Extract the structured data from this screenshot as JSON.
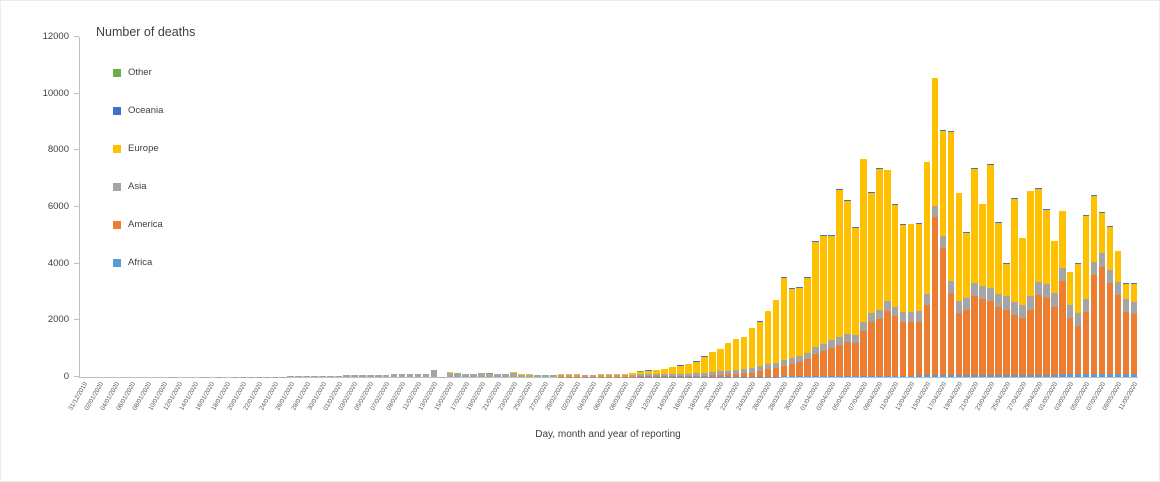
{
  "chart_data": {
    "type": "bar",
    "stacked": true,
    "legend_title": "Number of deaths",
    "xlabel": "Day, month and year of reporting",
    "ylabel": "",
    "ylim": [
      0,
      12000
    ],
    "yticks": [
      0,
      2000,
      4000,
      6000,
      8000,
      10000,
      12000
    ],
    "x_label_every": 2,
    "legend_position": "top-left-inside",
    "grid": false,
    "axis_color": "#bfbfbf",
    "text_color": "#404040",
    "legend_order": [
      "Other",
      "Oceania",
      "Europe",
      "Asia",
      "America",
      "Africa"
    ],
    "stack_order": [
      "Africa",
      "America",
      "Asia",
      "Europe",
      "Oceania",
      "Other"
    ],
    "dates": [
      "31/12/2019",
      "01/01/2020",
      "02/01/2020",
      "03/01/2020",
      "04/01/2020",
      "05/01/2020",
      "06/01/2020",
      "07/01/2020",
      "08/01/2020",
      "09/01/2020",
      "10/01/2020",
      "11/01/2020",
      "12/01/2020",
      "13/01/2020",
      "14/01/2020",
      "15/01/2020",
      "16/01/2020",
      "17/01/2020",
      "18/01/2020",
      "19/01/2020",
      "20/01/2020",
      "21/01/2020",
      "22/01/2020",
      "23/01/2020",
      "24/01/2020",
      "25/01/2020",
      "26/01/2020",
      "27/01/2020",
      "28/01/2020",
      "29/01/2020",
      "30/01/2020",
      "31/01/2020",
      "01/02/2020",
      "02/02/2020",
      "03/02/2020",
      "04/02/2020",
      "05/02/2020",
      "06/02/2020",
      "07/02/2020",
      "08/02/2020",
      "09/02/2020",
      "10/02/2020",
      "11/02/2020",
      "12/02/2020",
      "13/02/2020",
      "14/02/2020",
      "15/02/2020",
      "16/02/2020",
      "17/02/2020",
      "18/02/2020",
      "19/02/2020",
      "20/02/2020",
      "21/02/2020",
      "22/02/2020",
      "23/02/2020",
      "24/02/2020",
      "25/02/2020",
      "26/02/2020",
      "27/02/2020",
      "28/02/2020",
      "29/02/2020",
      "01/03/2020",
      "02/03/2020",
      "03/03/2020",
      "04/03/2020",
      "05/03/2020",
      "06/03/2020",
      "07/03/2020",
      "08/03/2020",
      "09/03/2020",
      "10/03/2020",
      "11/03/2020",
      "12/03/2020",
      "13/03/2020",
      "14/03/2020",
      "15/03/2020",
      "16/03/2020",
      "17/03/2020",
      "18/03/2020",
      "19/03/2020",
      "20/03/2020",
      "21/03/2020",
      "22/03/2020",
      "23/03/2020",
      "24/03/2020",
      "25/03/2020",
      "26/03/2020",
      "27/03/2020",
      "28/03/2020",
      "29/03/2020",
      "30/03/2020",
      "31/03/2020",
      "01/04/2020",
      "02/04/2020",
      "03/04/2020",
      "04/04/2020",
      "05/04/2020",
      "06/04/2020",
      "07/04/2020",
      "08/04/2020",
      "09/04/2020",
      "10/04/2020",
      "11/04/2020",
      "12/04/2020",
      "13/04/2020",
      "14/04/2020",
      "15/04/2020",
      "16/04/2020",
      "17/04/2020",
      "18/04/2020",
      "19/04/2020",
      "20/04/2020",
      "21/04/2020",
      "22/04/2020",
      "23/04/2020",
      "24/04/2020",
      "25/04/2020",
      "26/04/2020",
      "27/04/2020",
      "28/04/2020",
      "29/04/2020",
      "30/04/2020",
      "01/05/2020",
      "02/05/2020",
      "03/05/2020",
      "04/05/2020",
      "05/05/2020",
      "06/05/2020",
      "07/05/2020",
      "08/05/2020",
      "09/05/2020",
      "10/05/2020",
      "11/05/2020"
    ],
    "series": [
      {
        "name": "Africa",
        "color": "#5B9BD5",
        "values": [
          0,
          0,
          0,
          0,
          0,
          0,
          0,
          0,
          0,
          0,
          0,
          0,
          0,
          0,
          0,
          0,
          0,
          0,
          0,
          0,
          0,
          0,
          0,
          0,
          0,
          0,
          0,
          0,
          0,
          0,
          0,
          0,
          0,
          0,
          0,
          0,
          0,
          0,
          0,
          0,
          0,
          0,
          0,
          0,
          0,
          0,
          0,
          0,
          0,
          0,
          0,
          0,
          0,
          0,
          0,
          0,
          0,
          0,
          0,
          0,
          0,
          0,
          0,
          0,
          0,
          0,
          0,
          0,
          0,
          0,
          1,
          1,
          1,
          2,
          2,
          2,
          3,
          3,
          4,
          5,
          6,
          8,
          8,
          10,
          12,
          14,
          16,
          18,
          20,
          22,
          24,
          26,
          28,
          30,
          32,
          34,
          36,
          38,
          40,
          42,
          44,
          46,
          48,
          50,
          52,
          54,
          56,
          58,
          60,
          62,
          64,
          66,
          68,
          70,
          72,
          74,
          76,
          78,
          80,
          82,
          84,
          86,
          88,
          90,
          92,
          94,
          96,
          98,
          100,
          102,
          104,
          106,
          108
        ]
      },
      {
        "name": "America",
        "color": "#ED7D31",
        "values": [
          0,
          0,
          0,
          0,
          0,
          0,
          0,
          0,
          0,
          0,
          0,
          0,
          0,
          0,
          0,
          0,
          0,
          0,
          0,
          0,
          0,
          0,
          0,
          0,
          0,
          0,
          0,
          0,
          0,
          0,
          0,
          0,
          0,
          0,
          0,
          0,
          0,
          0,
          0,
          0,
          0,
          0,
          0,
          0,
          0,
          0,
          0,
          0,
          0,
          0,
          0,
          0,
          0,
          0,
          0,
          0,
          0,
          0,
          0,
          0,
          1,
          1,
          1,
          4,
          3,
          2,
          3,
          4,
          3,
          4,
          5,
          8,
          6,
          10,
          12,
          15,
          20,
          25,
          35,
          45,
          60,
          80,
          100,
          120,
          140,
          200,
          250,
          300,
          380,
          430,
          500,
          600,
          800,
          900,
          1000,
          1100,
          1200,
          1150,
          1600,
          1900,
          2000,
          2300,
          2100,
          1900,
          1900,
          1900,
          2500,
          5600,
          4500,
          2900,
          2200,
          2300,
          2800,
          2700,
          2600,
          2400,
          2300,
          2100,
          2000,
          2300,
          2800,
          2700,
          2400,
          3300,
          2000,
          1700,
          2200,
          3500,
          3800,
          3200,
          2800,
          2200,
          2100
        ]
      },
      {
        "name": "Asia",
        "color": "#A5A5A5",
        "values": [
          0,
          0,
          0,
          0,
          0,
          0,
          0,
          0,
          0,
          0,
          0,
          1,
          0,
          0,
          0,
          1,
          0,
          1,
          0,
          1,
          1,
          4,
          3,
          8,
          9,
          15,
          24,
          26,
          26,
          38,
          43,
          46,
          45,
          57,
          64,
          66,
          73,
          73,
          86,
          89,
          97,
          108,
          97,
          97,
          254,
          13,
          143,
          142,
          105,
          98,
          136,
          119,
          115,
          112,
          150,
          77,
          80,
          67,
          63,
          58,
          70,
          60,
          55,
          50,
          45,
          48,
          45,
          50,
          55,
          50,
          55,
          60,
          65,
          70,
          75,
          80,
          85,
          90,
          100,
          110,
          120,
          130,
          140,
          150,
          160,
          170,
          180,
          190,
          200,
          210,
          220,
          230,
          240,
          250,
          260,
          270,
          280,
          290,
          300,
          310,
          320,
          330,
          340,
          350,
          360,
          370,
          380,
          390,
          400,
          410,
          420,
          430,
          440,
          450,
          460,
          470,
          480,
          470,
          460,
          470,
          480,
          490,
          480,
          470,
          460,
          450,
          460,
          470,
          480,
          470,
          460,
          450,
          440
        ]
      },
      {
        "name": "Europe",
        "color": "#FFC000",
        "values": [
          0,
          0,
          0,
          0,
          0,
          0,
          0,
          0,
          0,
          0,
          0,
          0,
          0,
          0,
          0,
          0,
          0,
          0,
          0,
          0,
          0,
          0,
          0,
          0,
          0,
          0,
          0,
          0,
          0,
          0,
          0,
          0,
          0,
          0,
          0,
          0,
          0,
          0,
          0,
          0,
          0,
          0,
          0,
          0,
          0,
          0,
          1,
          0,
          0,
          0,
          0,
          0,
          0,
          0,
          1,
          2,
          4,
          1,
          2,
          4,
          8,
          5,
          8,
          12,
          16,
          25,
          30,
          35,
          50,
          65,
          90,
          130,
          150,
          180,
          230,
          280,
          330,
          400,
          560,
          700,
          780,
          960,
          1070,
          1120,
          1400,
          1560,
          1870,
          2200,
          2900,
          2450,
          2400,
          2650,
          3700,
          3800,
          3700,
          5200,
          4700,
          3800,
          5750,
          4250,
          4980,
          4620,
          3600,
          3080,
          3080,
          3080,
          4650,
          4500,
          3740,
          5280,
          3810,
          2300,
          4040,
          2880,
          4360,
          2500,
          1140,
          3650,
          2360,
          3700,
          3280,
          2620,
          1830,
          1990,
          1150,
          1750,
          2940,
          2330,
          1420,
          1530,
          1080,
          540,
          640
        ]
      },
      {
        "name": "Oceania",
        "color": "#4472C4",
        "values": [
          0,
          0,
          0,
          0,
          0,
          0,
          0,
          0,
          0,
          0,
          0,
          0,
          0,
          0,
          0,
          0,
          0,
          0,
          0,
          0,
          0,
          0,
          0,
          0,
          0,
          0,
          0,
          0,
          0,
          0,
          0,
          0,
          0,
          0,
          0,
          0,
          0,
          0,
          0,
          0,
          0,
          0,
          0,
          0,
          0,
          0,
          0,
          0,
          0,
          0,
          0,
          0,
          0,
          0,
          0,
          0,
          0,
          0,
          0,
          0,
          0,
          1,
          0,
          0,
          0,
          0,
          0,
          1,
          0,
          0,
          0,
          1,
          0,
          0,
          0,
          1,
          0,
          1,
          1,
          1,
          2,
          1,
          2,
          2,
          2,
          3,
          2,
          3,
          3,
          4,
          3,
          4,
          4,
          2,
          3,
          3,
          3,
          4,
          4,
          4,
          5,
          5,
          5,
          5,
          5,
          5,
          5,
          5,
          5,
          5,
          5,
          5,
          5,
          5,
          5,
          5,
          5,
          5,
          5,
          5,
          5,
          5,
          3,
          2,
          2,
          2,
          1,
          2,
          1,
          2,
          1,
          1,
          1
        ]
      },
      {
        "name": "Other",
        "color": "#70AD47",
        "values": [
          0,
          0,
          0,
          0,
          0,
          0,
          0,
          0,
          0,
          0,
          0,
          0,
          0,
          0,
          0,
          0,
          0,
          0,
          0,
          0,
          0,
          0,
          0,
          0,
          0,
          0,
          0,
          0,
          0,
          0,
          0,
          0,
          0,
          0,
          0,
          0,
          0,
          0,
          0,
          0,
          0,
          0,
          0,
          0,
          0,
          0,
          0,
          0,
          0,
          0,
          0,
          2,
          0,
          0,
          0,
          0,
          0,
          0,
          0,
          0,
          1,
          0,
          0,
          0,
          0,
          0,
          0,
          0,
          0,
          0,
          1,
          0,
          0,
          0,
          0,
          0,
          0,
          0,
          0,
          0,
          0,
          0,
          0,
          0,
          0,
          0,
          0,
          0,
          0,
          0,
          0,
          0,
          0,
          0,
          0,
          0,
          0,
          0,
          0,
          0,
          0,
          0,
          0,
          0,
          0,
          0,
          0,
          0,
          0,
          0,
          0,
          0,
          0,
          0,
          0,
          0,
          0,
          0,
          0,
          0,
          0,
          0,
          0,
          0,
          0,
          0,
          0,
          0,
          0,
          0,
          0,
          0,
          0
        ]
      }
    ]
  }
}
